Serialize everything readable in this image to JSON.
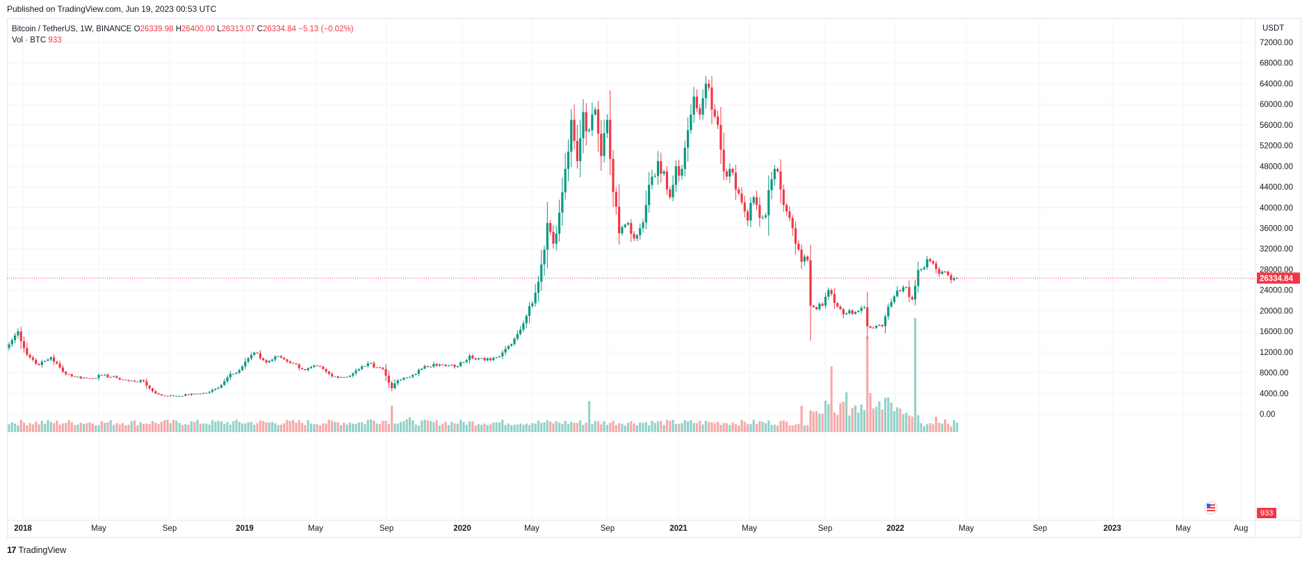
{
  "header": {
    "published": "Published on TradingView.com, Jun 19, 2023 00:53 UTC"
  },
  "legend": {
    "symbol": "Bitcoin / TetherUS, 1W, BINANCE",
    "o_label": "O",
    "o": "26339.98",
    "h_label": "H",
    "h": "26400.00",
    "l_label": "L",
    "l": "26313.07",
    "c_label": "C",
    "c": "26334.84",
    "change": "−5.13 (−0.02%)",
    "vol_label": "Vol · BTC",
    "vol_value": "933"
  },
  "footer": {
    "logo_text": "TradingView"
  },
  "colors": {
    "up": "#089981",
    "down": "#f23645",
    "up_vol": "#92d2c8",
    "down_vol": "#f7a9a9",
    "grid": "#f0f3fa"
  },
  "chart_data": {
    "type": "candlestick",
    "price_axis_unit": "USDT",
    "last_price": "26334.84",
    "last_volume": "933",
    "y_ticks": [
      "72000.00",
      "68000.00",
      "64000.00",
      "60000.00",
      "56000.00",
      "52000.00",
      "48000.00",
      "44000.00",
      "40000.00",
      "36000.00",
      "32000.00",
      "28000.00",
      "24000.00",
      "20000.00",
      "16000.00",
      "12000.00",
      "8000.00",
      "4000.00",
      "0.00"
    ],
    "x_ticks": [
      {
        "label": "2018",
        "bold": true
      },
      {
        "label": "May",
        "bold": false
      },
      {
        "label": "Sep",
        "bold": false
      },
      {
        "label": "2019",
        "bold": true
      },
      {
        "label": "May",
        "bold": false
      },
      {
        "label": "Sep",
        "bold": false
      },
      {
        "label": "2020",
        "bold": true
      },
      {
        "label": "May",
        "bold": false
      },
      {
        "label": "Sep",
        "bold": false
      },
      {
        "label": "2021",
        "bold": true
      },
      {
        "label": "May",
        "bold": false
      },
      {
        "label": "Sep",
        "bold": false
      },
      {
        "label": "2022",
        "bold": true
      },
      {
        "label": "May",
        "bold": false
      },
      {
        "label": "Sep",
        "bold": false
      },
      {
        "label": "2023",
        "bold": true
      },
      {
        "label": "May",
        "bold": false
      },
      {
        "label": "Aug",
        "bold": false
      }
    ],
    "ylim": [
      -2000,
      74000
    ],
    "price_anchors": [
      [
        0,
        13500
      ],
      [
        3,
        16000
      ],
      [
        6,
        11500
      ],
      [
        10,
        9500
      ],
      [
        14,
        11000
      ],
      [
        18,
        8200
      ],
      [
        22,
        7200
      ],
      [
        27,
        6900
      ],
      [
        31,
        7500
      ],
      [
        36,
        7000
      ],
      [
        40,
        6400
      ],
      [
        45,
        6350
      ],
      [
        46,
        5500
      ],
      [
        49,
        4000
      ],
      [
        51,
        3600
      ],
      [
        56,
        3500
      ],
      [
        62,
        3900
      ],
      [
        66,
        4100
      ],
      [
        70,
        5100
      ],
      [
        74,
        7800
      ],
      [
        77,
        8500
      ],
      [
        80,
        10800
      ],
      [
        82,
        11900
      ],
      [
        86,
        10000
      ],
      [
        90,
        11200
      ],
      [
        95,
        9800
      ],
      [
        99,
        8500
      ],
      [
        103,
        9300
      ],
      [
        108,
        7300
      ],
      [
        113,
        7200
      ],
      [
        117,
        8700
      ],
      [
        120,
        9800
      ],
      [
        125,
        8700
      ],
      [
        128,
        5000
      ],
      [
        130,
        6500
      ],
      [
        134,
        7200
      ],
      [
        138,
        8800
      ],
      [
        142,
        9700
      ],
      [
        146,
        9300
      ],
      [
        150,
        9300
      ],
      [
        154,
        11300
      ],
      [
        159,
        10400
      ],
      [
        163,
        11000
      ],
      [
        167,
        13200
      ],
      [
        170,
        15500
      ],
      [
        173,
        19000
      ],
      [
        176,
        23500
      ],
      [
        178,
        29000
      ],
      [
        180,
        37000
      ],
      [
        182,
        33000
      ],
      [
        184,
        39000
      ],
      [
        186,
        47500
      ],
      [
        188,
        57000
      ],
      [
        190,
        49000
      ],
      [
        192,
        58500
      ],
      [
        194,
        55000
      ],
      [
        196,
        59000
      ],
      [
        198,
        50000
      ],
      [
        200,
        57000
      ],
      [
        202,
        43000
      ],
      [
        204,
        35000
      ],
      [
        207,
        37000
      ],
      [
        209,
        34000
      ],
      [
        211,
        36000
      ],
      [
        213,
        40500
      ],
      [
        215,
        46000
      ],
      [
        217,
        49000
      ],
      [
        219,
        47000
      ],
      [
        221,
        42000
      ],
      [
        223,
        48000
      ],
      [
        225,
        47500
      ],
      [
        227,
        55000
      ],
      [
        229,
        61500
      ],
      [
        231,
        58000
      ],
      [
        233,
        64000
      ],
      [
        235,
        59000
      ],
      [
        237,
        56000
      ],
      [
        239,
        47000
      ],
      [
        241,
        47500
      ],
      [
        243,
        43500
      ],
      [
        245,
        41000
      ],
      [
        247,
        37500
      ],
      [
        249,
        42000
      ],
      [
        251,
        38000
      ],
      [
        253,
        38500
      ],
      [
        255,
        45500
      ],
      [
        257,
        47000
      ],
      [
        259,
        40500
      ],
      [
        261,
        38000
      ],
      [
        263,
        33000
      ],
      [
        265,
        29500
      ],
      [
        267,
        29800
      ],
      [
        268,
        21000
      ],
      [
        270,
        20300
      ],
      [
        272,
        21000
      ],
      [
        274,
        24000
      ],
      [
        276,
        21500
      ],
      [
        278,
        20300
      ],
      [
        280,
        19500
      ],
      [
        282,
        19400
      ],
      [
        284,
        20000
      ],
      [
        286,
        20700
      ],
      [
        287,
        17000
      ],
      [
        289,
        16700
      ],
      [
        292,
        17000
      ],
      [
        294,
        20800
      ],
      [
        296,
        22800
      ],
      [
        298,
        23800
      ],
      [
        300,
        24600
      ],
      [
        302,
        22200
      ],
      [
        304,
        27900
      ],
      [
        306,
        28400
      ],
      [
        308,
        29600
      ],
      [
        310,
        28100
      ],
      [
        312,
        27600
      ],
      [
        314,
        26900
      ],
      [
        316,
        26300
      ],
      [
        317,
        26334.84
      ]
    ],
    "volume_series": {
      "unit": "BTC",
      "note": "weekly volumes shown as histogram at the bottom of the chart; Vol in BTC",
      "peaks": [
        {
          "week": 128,
          "relative": 1.0
        },
        {
          "week": 194,
          "relative": 1.2
        },
        {
          "week": 265,
          "relative": 1.0
        },
        {
          "week": 275,
          "relative": 2.7
        },
        {
          "week": 287,
          "relative": 4.0
        },
        {
          "week": 303,
          "relative": 4.8
        }
      ]
    }
  }
}
